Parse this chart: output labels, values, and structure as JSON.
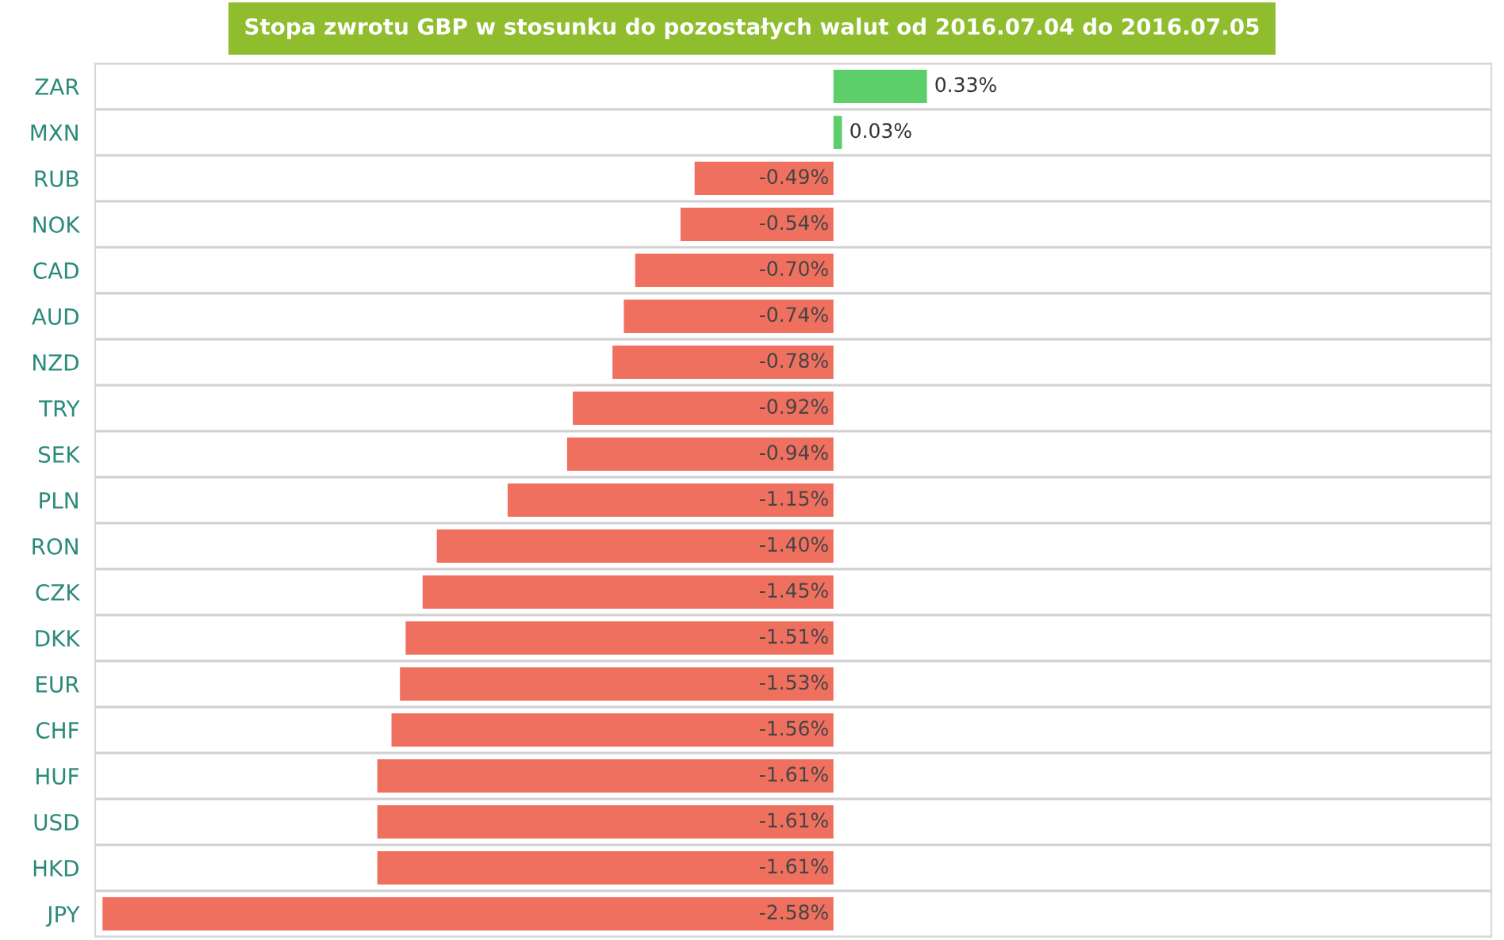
{
  "chart_data": {
    "type": "bar",
    "orientation": "horizontal",
    "title": "Stopa zwrotu GBP w stosunku do pozostałych walut od 2016.07.04 do 2016.07.05",
    "categories": [
      "ZAR",
      "MXN",
      "RUB",
      "NOK",
      "CAD",
      "AUD",
      "NZD",
      "TRY",
      "SEK",
      "PLN",
      "RON",
      "CZK",
      "DKK",
      "EUR",
      "CHF",
      "HUF",
      "USD",
      "HKD",
      "JPY"
    ],
    "values": [
      0.33,
      0.03,
      -0.49,
      -0.54,
      -0.7,
      -0.74,
      -0.78,
      -0.92,
      -0.94,
      -1.15,
      -1.4,
      -1.45,
      -1.51,
      -1.53,
      -1.56,
      -1.61,
      -1.61,
      -1.61,
      -2.58
    ],
    "value_labels": [
      "0.33%",
      "0.03%",
      "-0.49%",
      "-0.54%",
      "-0.70%",
      "-0.74%",
      "-0.78%",
      "-0.92%",
      "-0.94%",
      "-1.15%",
      "-1.40%",
      "-1.45%",
      "-1.51%",
      "-1.53%",
      "-1.56%",
      "-1.61%",
      "-1.61%",
      "-1.61%",
      "-2.58%"
    ],
    "colors": [
      "#5ccf6a",
      "#5ccf6a",
      "#f07060",
      "#f07060",
      "#f07060",
      "#f07060",
      "#f07060",
      "#f07060",
      "#f07060",
      "#f07060",
      "#f07060",
      "#f07060",
      "#f07060",
      "#f07060",
      "#f07060",
      "#f07060",
      "#f07060",
      "#f07060",
      "#f07060"
    ],
    "tick_labels": "y",
    "grid": "y",
    "legend": false
  }
}
